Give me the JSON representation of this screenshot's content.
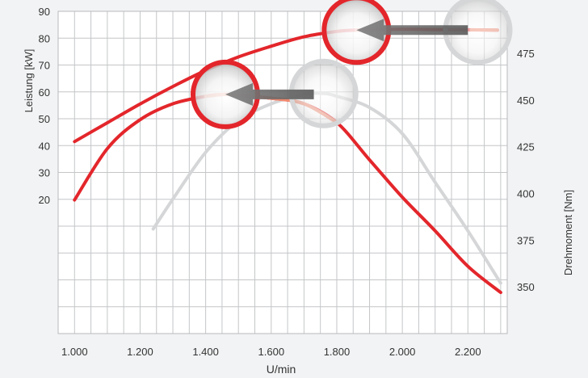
{
  "chart_data": {
    "type": "line",
    "xlabel": "U/min",
    "ylabel_left": "Leistung [kW]",
    "ylabel_right": "Drehmoment [Nm]",
    "x_ticks": [
      1000,
      1200,
      1400,
      1600,
      1800,
      2000,
      2200
    ],
    "x_tick_labels": [
      "1.000",
      "1.200",
      "1.400",
      "1.600",
      "1.800",
      "2.000",
      "2.200"
    ],
    "xlim": [
      950,
      2320
    ],
    "y_left_ticks": [
      20,
      30,
      40,
      50,
      60,
      70,
      80,
      90
    ],
    "y_left_tick_labels": [
      "20",
      "30",
      "40",
      "50",
      "60",
      "70",
      "80",
      "90"
    ],
    "y_left_range": [
      -30,
      90
    ],
    "y_right_ticks": [
      350,
      375,
      400,
      425,
      450,
      475
    ],
    "y_right_tick_labels": [
      "350",
      "375",
      "400",
      "425",
      "450",
      "475"
    ],
    "y_right_range": [
      325,
      497.5
    ],
    "grid": true,
    "series": [
      {
        "axis": "left",
        "color": "#e3262b",
        "x": [
          1000,
          1100,
          1200,
          1300,
          1400,
          1500,
          1600,
          1700,
          1800,
          1860,
          2000,
          2100,
          2200,
          2290
        ],
        "y": [
          41.5,
          48.5,
          55.5,
          62,
          68,
          73,
          77,
          80.5,
          82.5,
          83,
          83.3,
          83.2,
          83.1,
          83
        ]
      },
      {
        "axis": "right",
        "color": "#e3262b",
        "x": [
          1000,
          1100,
          1200,
          1300,
          1400,
          1460,
          1500,
          1600,
          1700,
          1800,
          1900,
          2000,
          2100,
          2200,
          2300
        ],
        "y": [
          396.5,
          424,
          439.5,
          448,
          452,
          453,
          452.5,
          451,
          448,
          438,
          418,
          398,
          380,
          361,
          347
        ]
      },
      {
        "axis": "right",
        "color": "#d5d6d7",
        "x": [
          1240,
          1300,
          1400,
          1500,
          1600,
          1700,
          1760,
          1800,
          1900,
          2000,
          2100,
          2200,
          2300
        ],
        "y": [
          381,
          397,
          422,
          439,
          448,
          453,
          453.5,
          452,
          446,
          432,
          406,
          380,
          352
        ]
      }
    ],
    "annotations": [
      {
        "type": "circle",
        "color": "#e3262b",
        "x": 1860,
        "axis": "left",
        "y": 83
      },
      {
        "type": "circle",
        "color": "#d5d6d7",
        "x": 2230,
        "axis": "left",
        "y": 83
      },
      {
        "type": "arrow",
        "from_x": 2200,
        "to_x": 1860,
        "axis": "left",
        "y": 83
      },
      {
        "type": "circle",
        "color": "#e3262b",
        "x": 1460,
        "axis": "right",
        "y": 453
      },
      {
        "type": "circle",
        "color": "#d5d6d7",
        "x": 1760,
        "axis": "right",
        "y": 453.5
      },
      {
        "type": "arrow",
        "from_x": 1730,
        "to_x": 1460,
        "axis": "right",
        "y": 453
      }
    ]
  }
}
